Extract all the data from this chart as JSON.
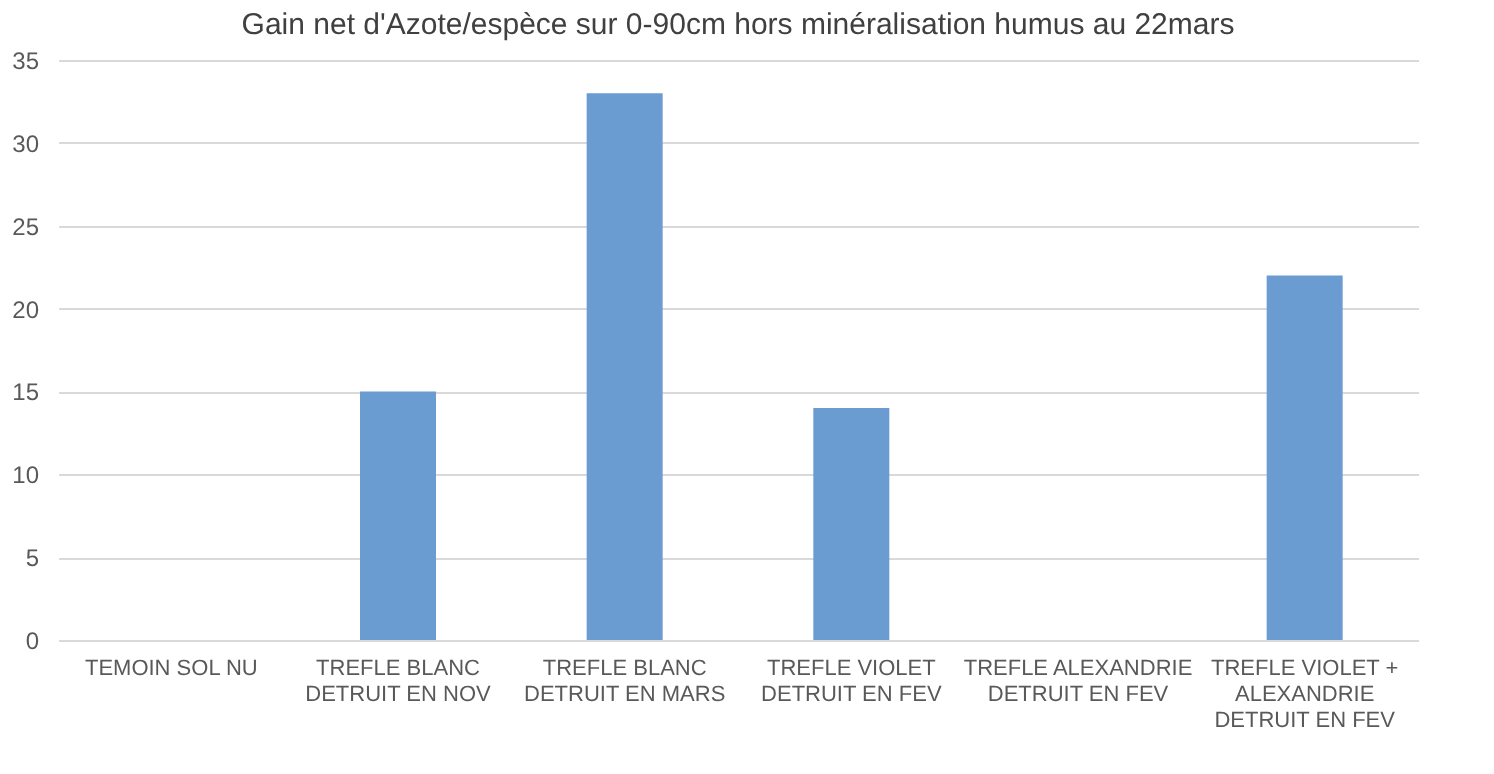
{
  "chart_data": {
    "type": "bar",
    "title": "Gain net d'Azote/espèce sur 0-90cm hors minéralisation humus au 22mars",
    "categories": [
      "TEMOIN SOL NU",
      "TREFLE BLANC DETRUIT EN NOV",
      "TREFLE BLANC DETRUIT EN MARS",
      "TREFLE VIOLET DETRUIT EN FEV",
      "TREFLE ALEXANDRIE DETRUIT EN FEV",
      "TREFLE VIOLET + ALEXANDRIE DETRUIT EN FEV"
    ],
    "values": [
      0,
      15,
      33,
      14,
      0,
      22
    ],
    "color": "#6a9bd1",
    "ylim": [
      0,
      35
    ],
    "yticks": [
      0,
      5,
      10,
      15,
      20,
      25,
      30,
      35
    ],
    "grid": "y"
  }
}
